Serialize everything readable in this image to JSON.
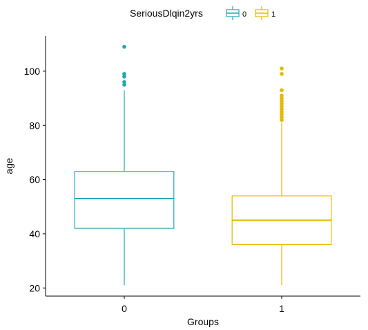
{
  "chart_data": {
    "type": "box",
    "title": "",
    "xlabel": "Groups",
    "ylabel": "age",
    "categories": [
      "0",
      "1"
    ],
    "ylim": [
      17,
      113
    ],
    "yticks": [
      20,
      40,
      60,
      80,
      100
    ],
    "grid": false,
    "legend": {
      "title": "SeriousDlqin2yrs",
      "placement": "top",
      "entries": [
        "0",
        "1"
      ]
    },
    "colors": {
      "0": "#21A9B0",
      "1": "#E7B800"
    },
    "series": [
      {
        "name": "0",
        "category": "0",
        "whisker_low": 21,
        "q1": 42,
        "median": 53,
        "q3": 63,
        "whisker_high": 93,
        "outliers": [
          95,
          96,
          98,
          99,
          109
        ]
      },
      {
        "name": "1",
        "category": "1",
        "whisker_low": 21,
        "q1": 36,
        "median": 45,
        "q3": 54,
        "whisker_high": 81,
        "outliers": [
          82,
          83,
          84,
          85,
          86,
          87,
          88,
          89,
          90,
          91,
          93,
          99,
          101
        ]
      }
    ]
  }
}
